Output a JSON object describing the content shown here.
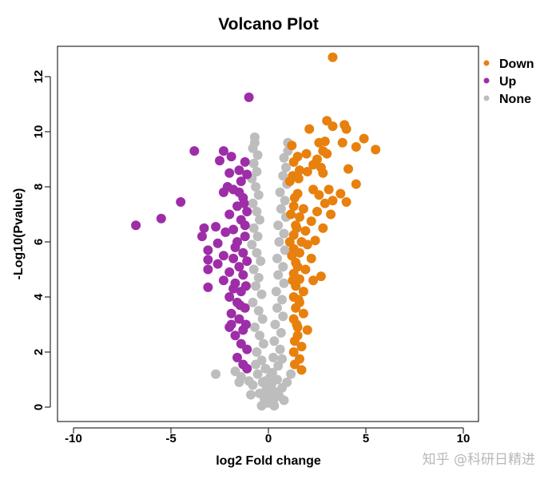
{
  "chart_data": {
    "type": "scatter",
    "title": "Volcano Plot",
    "xlabel": "log2 Fold change",
    "ylabel": "-Log10(Pvalue)",
    "xlim": [
      -10,
      10
    ],
    "ylim": [
      0,
      13
    ],
    "x_ticks": [
      -10,
      -5,
      0,
      5,
      10
    ],
    "y_ticks": [
      0,
      2,
      4,
      6,
      8,
      10,
      12
    ],
    "legend_position": "top-right",
    "legend": [
      {
        "name": "Down",
        "color": "#E8800E"
      },
      {
        "name": "Up",
        "color": "#9E2DA8"
      },
      {
        "name": "None",
        "color": "#BDBDBD"
      }
    ],
    "series": [
      {
        "name": "Down",
        "color": "#E8800E",
        "points": [
          [
            3.3,
            12.7
          ],
          [
            3.0,
            10.4
          ],
          [
            3.3,
            10.2
          ],
          [
            3.9,
            10.25
          ],
          [
            4.0,
            10.1
          ],
          [
            2.1,
            10.1
          ],
          [
            4.9,
            9.75
          ],
          [
            2.6,
            9.6
          ],
          [
            2.9,
            9.65
          ],
          [
            3.8,
            9.6
          ],
          [
            4.5,
            9.45
          ],
          [
            5.5,
            9.35
          ],
          [
            1.2,
            9.5
          ],
          [
            2.8,
            9.3
          ],
          [
            3.0,
            9.2
          ],
          [
            1.95,
            9.2
          ],
          [
            1.5,
            9.1
          ],
          [
            2.5,
            9.0
          ],
          [
            1.3,
            8.9
          ],
          [
            2.3,
            8.8
          ],
          [
            4.1,
            8.65
          ],
          [
            2.7,
            8.7
          ],
          [
            1.6,
            8.6
          ],
          [
            2.0,
            8.55
          ],
          [
            2.8,
            8.5
          ],
          [
            1.25,
            8.4
          ],
          [
            4.5,
            8.1
          ],
          [
            3.1,
            7.9
          ],
          [
            2.3,
            7.9
          ],
          [
            3.7,
            7.75
          ],
          [
            1.5,
            7.75
          ],
          [
            2.6,
            7.7
          ],
          [
            3.3,
            7.5
          ],
          [
            4.0,
            7.45
          ],
          [
            2.9,
            7.4
          ],
          [
            1.3,
            7.3
          ],
          [
            1.8,
            7.2
          ],
          [
            2.5,
            7.1
          ],
          [
            3.2,
            7.0
          ],
          [
            1.6,
            6.9
          ],
          [
            2.2,
            6.75
          ],
          [
            1.4,
            6.6
          ],
          [
            2.8,
            6.5
          ],
          [
            1.9,
            6.4
          ],
          [
            1.3,
            6.25
          ],
          [
            2.4,
            6.05
          ],
          [
            1.7,
            6.0
          ],
          [
            2.0,
            5.9
          ],
          [
            1.3,
            5.75
          ],
          [
            1.6,
            5.6
          ],
          [
            2.2,
            5.4
          ],
          [
            1.4,
            5.25
          ],
          [
            1.9,
            5.0
          ],
          [
            1.3,
            4.85
          ],
          [
            2.7,
            4.75
          ],
          [
            1.6,
            4.65
          ],
          [
            2.3,
            4.6
          ],
          [
            1.4,
            4.4
          ],
          [
            1.8,
            4.2
          ],
          [
            1.3,
            4.0
          ],
          [
            1.6,
            3.8
          ],
          [
            1.4,
            3.6
          ],
          [
            1.8,
            3.4
          ],
          [
            1.3,
            3.2
          ],
          [
            2.0,
            2.8
          ],
          [
            1.5,
            2.6
          ],
          [
            1.35,
            2.4
          ],
          [
            1.7,
            2.2
          ],
          [
            1.3,
            2.0
          ],
          [
            1.6,
            1.75
          ],
          [
            1.35,
            1.55
          ],
          [
            1.7,
            1.35
          ],
          [
            1.5,
            2.9
          ],
          [
            1.45,
            3.0
          ],
          [
            1.55,
            3.9
          ],
          [
            1.25,
            4.6
          ],
          [
            1.5,
            5.1
          ],
          [
            1.2,
            5.5
          ],
          [
            1.1,
            6.0
          ],
          [
            1.45,
            6.5
          ],
          [
            1.15,
            7.0
          ],
          [
            1.35,
            7.6
          ],
          [
            1.1,
            8.2
          ],
          [
            1.55,
            8.3
          ]
        ]
      },
      {
        "name": "Up",
        "color": "#9E2DA8",
        "points": [
          [
            -1.0,
            11.25
          ],
          [
            -3.8,
            9.3
          ],
          [
            -2.3,
            9.3
          ],
          [
            -1.9,
            9.1
          ],
          [
            -2.5,
            8.95
          ],
          [
            -1.2,
            8.9
          ],
          [
            -1.5,
            8.6
          ],
          [
            -2.0,
            8.5
          ],
          [
            -1.1,
            8.45
          ],
          [
            -1.4,
            8.2
          ],
          [
            -2.1,
            8.0
          ],
          [
            -1.8,
            7.9
          ],
          [
            -2.3,
            7.8
          ],
          [
            -1.3,
            7.6
          ],
          [
            -4.5,
            7.45
          ],
          [
            -1.6,
            7.3
          ],
          [
            -1.1,
            7.1
          ],
          [
            -2.0,
            7.0
          ],
          [
            -5.5,
            6.85
          ],
          [
            -1.4,
            6.8
          ],
          [
            -6.8,
            6.6
          ],
          [
            -2.7,
            6.55
          ],
          [
            -3.3,
            6.5
          ],
          [
            -1.8,
            6.45
          ],
          [
            -2.2,
            6.35
          ],
          [
            -3.4,
            6.2
          ],
          [
            -1.2,
            6.2
          ],
          [
            -1.6,
            6.0
          ],
          [
            -2.6,
            5.95
          ],
          [
            -3.1,
            5.7
          ],
          [
            -1.3,
            5.6
          ],
          [
            -2.3,
            5.5
          ],
          [
            -1.8,
            5.4
          ],
          [
            -3.1,
            5.35
          ],
          [
            -2.6,
            5.2
          ],
          [
            -1.5,
            5.1
          ],
          [
            -3.1,
            5.0
          ],
          [
            -2.0,
            4.9
          ],
          [
            -1.3,
            4.8
          ],
          [
            -2.3,
            4.6
          ],
          [
            -1.7,
            4.5
          ],
          [
            -3.1,
            4.35
          ],
          [
            -1.4,
            4.2
          ],
          [
            -2.0,
            4.0
          ],
          [
            -1.6,
            3.8
          ],
          [
            -1.2,
            3.6
          ],
          [
            -1.9,
            3.4
          ],
          [
            -1.5,
            3.2
          ],
          [
            -2.0,
            2.9
          ],
          [
            -1.3,
            2.8
          ],
          [
            -1.7,
            2.6
          ],
          [
            -1.4,
            2.3
          ],
          [
            -1.1,
            2.1
          ],
          [
            -1.6,
            1.8
          ],
          [
            -1.3,
            1.55
          ],
          [
            -1.1,
            1.4
          ],
          [
            -1.9,
            3.0
          ],
          [
            -1.15,
            3.0
          ],
          [
            -1.8,
            4.3
          ],
          [
            -1.15,
            4.4
          ],
          [
            -1.1,
            5.3
          ],
          [
            -1.2,
            6.6
          ],
          [
            -1.5,
            7.8
          ],
          [
            -1.25,
            7.4
          ],
          [
            -1.7,
            5.8
          ],
          [
            -1.45,
            3.7
          ]
        ]
      },
      {
        "name": "None",
        "color": "#BDBDBD",
        "points": [
          [
            -0.7,
            9.8
          ],
          [
            -0.7,
            9.6
          ],
          [
            -0.8,
            9.4
          ],
          [
            -0.55,
            9.15
          ],
          [
            -0.75,
            8.85
          ],
          [
            -0.6,
            8.55
          ],
          [
            -0.85,
            8.3
          ],
          [
            -0.65,
            8.0
          ],
          [
            -0.5,
            7.7
          ],
          [
            -0.8,
            7.4
          ],
          [
            -0.6,
            7.1
          ],
          [
            -0.45,
            6.8
          ],
          [
            -0.75,
            6.5
          ],
          [
            -0.55,
            6.2
          ],
          [
            -0.85,
            5.9
          ],
          [
            -0.6,
            5.6
          ],
          [
            -0.4,
            5.3
          ],
          [
            -0.75,
            5.0
          ],
          [
            -0.5,
            4.7
          ],
          [
            -0.65,
            4.4
          ],
          [
            -0.35,
            4.1
          ],
          [
            -0.8,
            3.8
          ],
          [
            -0.5,
            3.5
          ],
          [
            -0.3,
            3.2
          ],
          [
            -0.7,
            2.9
          ],
          [
            -0.45,
            2.6
          ],
          [
            -0.25,
            2.3
          ],
          [
            -0.6,
            2.0
          ],
          [
            -0.35,
            1.7
          ],
          [
            -0.15,
            1.4
          ],
          [
            -0.55,
            1.2
          ],
          [
            -0.3,
            0.9
          ],
          [
            -0.1,
            0.7
          ],
          [
            -0.45,
            0.5
          ],
          [
            -0.2,
            0.3
          ],
          [
            0.0,
            0.15
          ],
          [
            -2.7,
            1.2
          ],
          [
            -1.7,
            1.3
          ],
          [
            -1.4,
            1.1
          ],
          [
            -1.0,
            0.95
          ],
          [
            -1.5,
            0.9
          ],
          [
            -0.8,
            0.8
          ],
          [
            1.0,
            9.6
          ],
          [
            1.0,
            9.3
          ],
          [
            0.8,
            9.05
          ],
          [
            0.9,
            8.7
          ],
          [
            0.75,
            8.4
          ],
          [
            0.95,
            8.1
          ],
          [
            0.6,
            7.8
          ],
          [
            0.85,
            7.5
          ],
          [
            0.65,
            7.2
          ],
          [
            0.9,
            6.9
          ],
          [
            0.5,
            6.6
          ],
          [
            0.8,
            6.3
          ],
          [
            0.55,
            6.0
          ],
          [
            0.85,
            5.7
          ],
          [
            0.45,
            5.4
          ],
          [
            0.75,
            5.1
          ],
          [
            0.5,
            4.8
          ],
          [
            0.8,
            4.5
          ],
          [
            0.4,
            4.2
          ],
          [
            0.7,
            3.9
          ],
          [
            0.45,
            3.6
          ],
          [
            0.75,
            3.3
          ],
          [
            0.35,
            3.0
          ],
          [
            0.65,
            2.7
          ],
          [
            0.3,
            2.4
          ],
          [
            0.6,
            2.1
          ],
          [
            0.25,
            1.8
          ],
          [
            0.5,
            1.5
          ],
          [
            0.2,
            1.25
          ],
          [
            0.45,
            1.0
          ],
          [
            0.15,
            0.8
          ],
          [
            0.35,
            0.55
          ],
          [
            0.1,
            0.35
          ],
          [
            0.25,
            0.15
          ],
          [
            1.15,
            1.2
          ],
          [
            0.95,
            0.9
          ],
          [
            0.7,
            0.7
          ],
          [
            0.55,
            0.4
          ],
          [
            -0.05,
            0.5
          ],
          [
            0.05,
            0.25
          ],
          [
            -0.9,
            0.45
          ],
          [
            0.8,
            0.25
          ],
          [
            -0.35,
            0.05
          ],
          [
            0.3,
            0.05
          ],
          [
            -0.15,
            0.95
          ],
          [
            0.1,
            1.1
          ],
          [
            -0.65,
            1.55
          ],
          [
            0.7,
            1.75
          ]
        ]
      }
    ]
  },
  "watermark": "知乎 @科研日精进"
}
